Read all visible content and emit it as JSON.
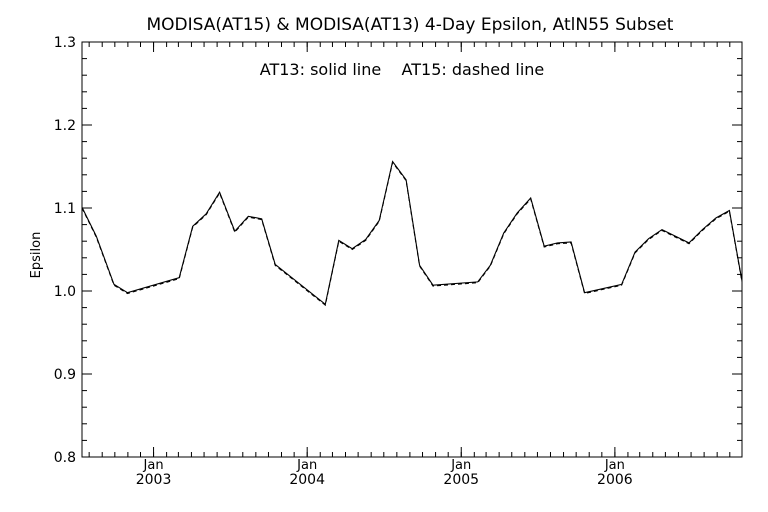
{
  "chart_data": {
    "type": "line",
    "title": "MODISA(AT15) & MODISA(AT13) 4-Day Epsilon, AtlN55 Subset",
    "annotation": "AT13: solid line    AT15: dashed line",
    "ylabel": "Epsilon",
    "xlabel": "",
    "ylim": [
      0.8,
      1.3
    ],
    "xlim": [
      "2002-07-15",
      "2006-10-30"
    ],
    "yticks": [
      "0.8",
      "0.9",
      "1.0",
      "1.1",
      "1.2",
      "1.3"
    ],
    "xticks": [
      {
        "month": "Jan",
        "year": "2003",
        "date": "2003-01-01"
      },
      {
        "month": "Jan",
        "year": "2004",
        "date": "2004-01-01"
      },
      {
        "month": "Jan",
        "year": "2005",
        "date": "2005-01-01"
      },
      {
        "month": "Jan",
        "year": "2006",
        "date": "2006-01-01"
      }
    ],
    "grid": false,
    "x": [
      "2002-07-15",
      "2002-08-18",
      "2002-09-29",
      "2002-10-31",
      "2003-03-03",
      "2003-04-04",
      "2003-05-06",
      "2003-06-07",
      "2003-07-13",
      "2003-08-14",
      "2003-09-15",
      "2003-10-17",
      "2004-02-13",
      "2004-03-16",
      "2004-04-17",
      "2004-05-19",
      "2004-06-20",
      "2004-07-22",
      "2004-08-23",
      "2004-09-24",
      "2004-10-26",
      "2005-02-09",
      "2005-03-11",
      "2005-04-12",
      "2005-05-14",
      "2005-06-15",
      "2005-07-17",
      "2005-08-18",
      "2005-09-19",
      "2005-10-21",
      "2006-01-17",
      "2006-02-18",
      "2006-03-22",
      "2006-04-23",
      "2006-05-25",
      "2006-06-26",
      "2006-07-28",
      "2006-08-29",
      "2006-09-30",
      "2006-10-30"
    ],
    "series": [
      {
        "name": "AT13",
        "style": "solid",
        "values": [
          1.101,
          1.066,
          1.008,
          0.998,
          1.016,
          1.078,
          1.093,
          1.119,
          1.072,
          1.09,
          1.087,
          1.032,
          0.984,
          1.061,
          1.051,
          1.062,
          1.085,
          1.156,
          1.134,
          1.031,
          1.007,
          1.011,
          1.031,
          1.07,
          1.094,
          1.112,
          1.054,
          1.058,
          1.059,
          0.998,
          1.008,
          1.047,
          1.063,
          1.074,
          1.066,
          1.058,
          1.074,
          1.088,
          1.097,
          1.012
        ]
      },
      {
        "name": "AT15",
        "style": "dashed",
        "values": [
          1.1,
          1.065,
          1.007,
          0.997,
          1.015,
          1.077,
          1.092,
          1.118,
          1.071,
          1.089,
          1.086,
          1.031,
          0.983,
          1.06,
          1.05,
          1.061,
          1.084,
          1.155,
          1.133,
          1.03,
          1.006,
          1.01,
          1.03,
          1.069,
          1.093,
          1.111,
          1.053,
          1.057,
          1.058,
          0.997,
          1.007,
          1.046,
          1.062,
          1.073,
          1.065,
          1.057,
          1.073,
          1.087,
          1.096,
          1.011
        ]
      }
    ]
  }
}
